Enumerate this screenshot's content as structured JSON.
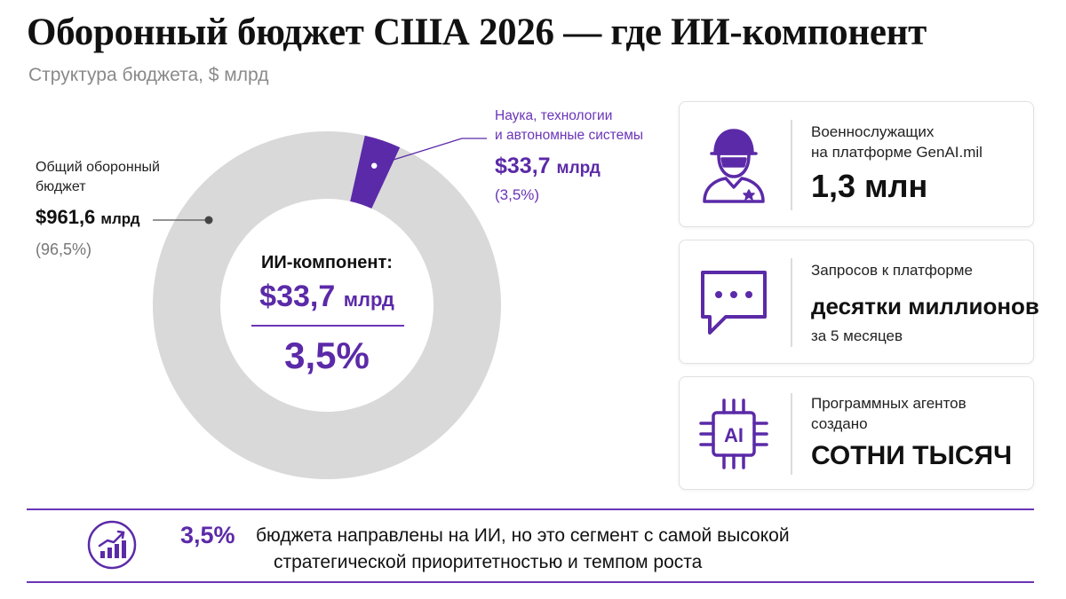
{
  "title": "Оборонный бюджет США 2026 — где ИИ-компонент",
  "subtitle": "Структура бюджета, $ млрд",
  "colors": {
    "accent": "#5b2aa8",
    "total_segment": "#d9d9d9",
    "ai_segment": "#5b2aa8"
  },
  "chart_data": {
    "type": "pie",
    "style": "donut",
    "slices": [
      {
        "label_line1": "Общий оборонный",
        "label_line2": "бюджет",
        "value": 961.6,
        "value_text": "$961,6",
        "unit": "млрд",
        "percent": 96.5,
        "percent_text": "(96,5%)",
        "color": "#d9d9d9"
      },
      {
        "label_line1": "Наука, технологии",
        "label_line2": "и автономные системы",
        "value": 33.7,
        "value_text": "$33,7",
        "unit": "млрд",
        "percent": 3.5,
        "percent_text": "(3,5%)",
        "color": "#5b2aa8"
      }
    ],
    "center": {
      "label": "ИИ-компонент:",
      "value_text": "$33,7",
      "unit": "млрд",
      "percent_text": "3,5%"
    }
  },
  "cards": [
    {
      "icon": "soldier-icon",
      "label_line1": "Военнослужащих",
      "label_line2": "на платформе GenAI.mil",
      "big": "1,3 млн"
    },
    {
      "icon": "chat-bubble-icon",
      "label_line1": "Запросов к платформе",
      "big": "десятки миллионов",
      "note": "за 5 месяцев"
    },
    {
      "icon": "ai-chip-icon",
      "label_line1": "Программных агентов",
      "label_line2": "создано",
      "big": "СОТНИ ТЫСЯЧ"
    }
  ],
  "footer": {
    "icon": "trend-up-icon",
    "highlight": "3,5%",
    "line1": "бюджета направлены на ИИ, но это сегмент с самой высокой",
    "line2": "стратегической приоритетностью и темпом роста"
  }
}
